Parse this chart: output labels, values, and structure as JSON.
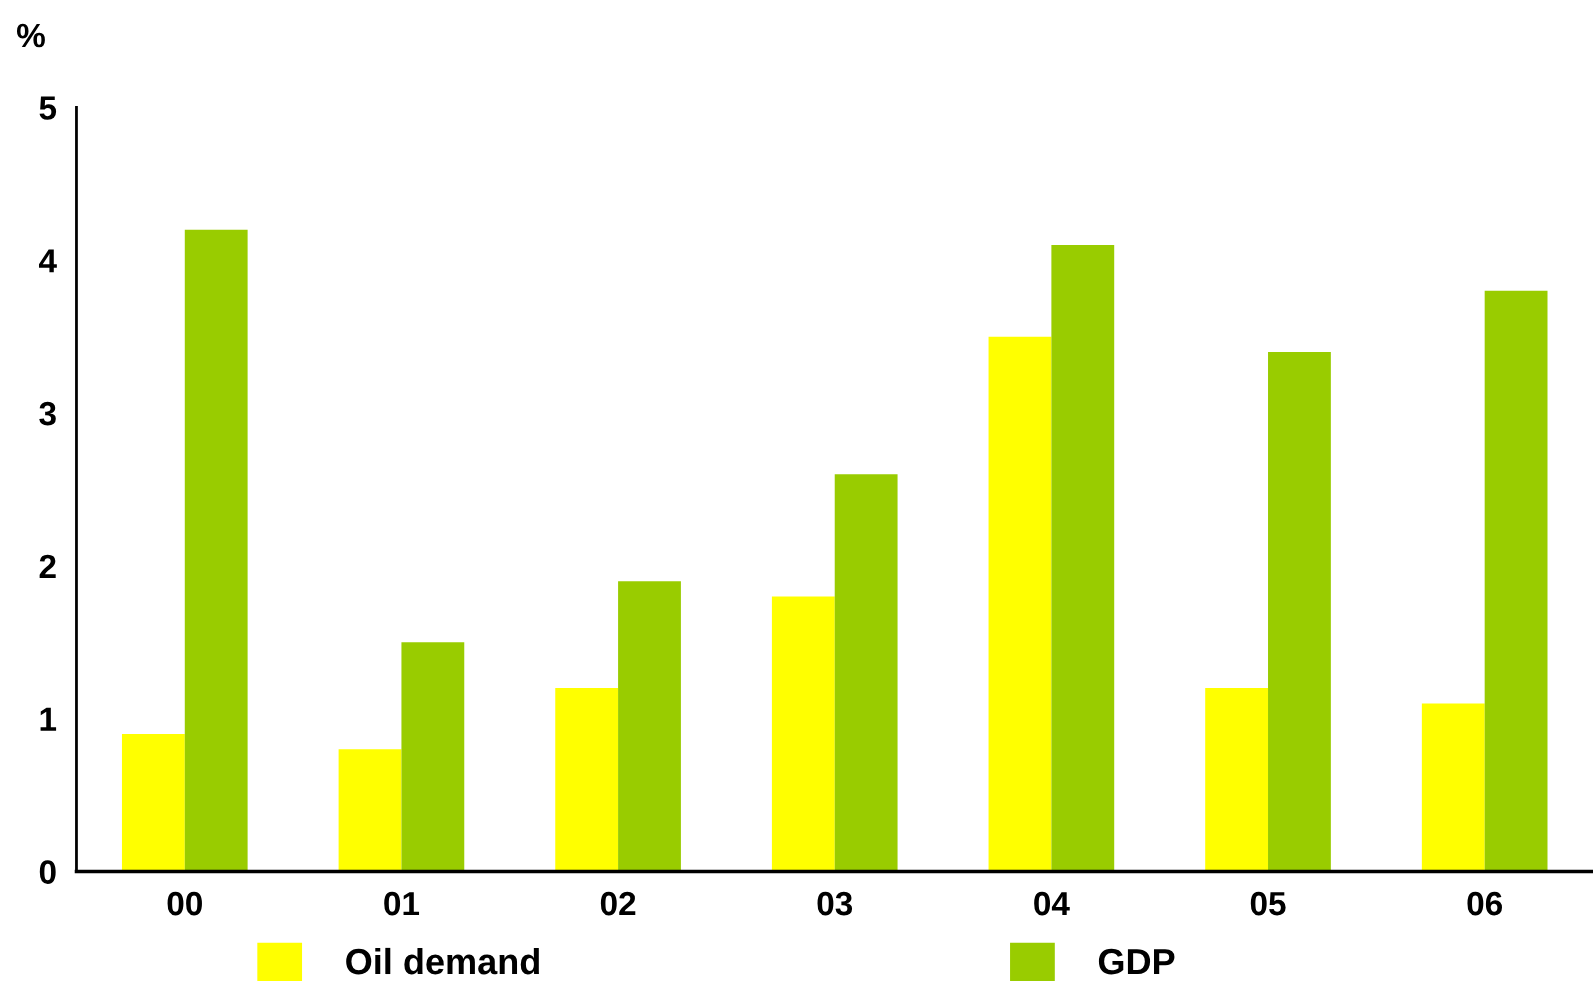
{
  "chart_data": {
    "type": "bar",
    "ylabel": "%",
    "categories": [
      "00",
      "01",
      "02",
      "03",
      "04",
      "05",
      "06"
    ],
    "series": [
      {
        "name": "Oil demand",
        "color": "#ffff00",
        "values": [
          0.9,
          0.8,
          1.2,
          1.8,
          3.5,
          1.2,
          1.1
        ]
      },
      {
        "name": "GDP",
        "color": "#99cc00",
        "values": [
          4.2,
          1.5,
          1.9,
          2.6,
          4.1,
          3.4,
          3.8
        ]
      }
    ],
    "ylim": [
      0,
      5
    ],
    "yticks": [
      0,
      1,
      2,
      3,
      4,
      5
    ],
    "grid": false,
    "legend": "bottom"
  }
}
